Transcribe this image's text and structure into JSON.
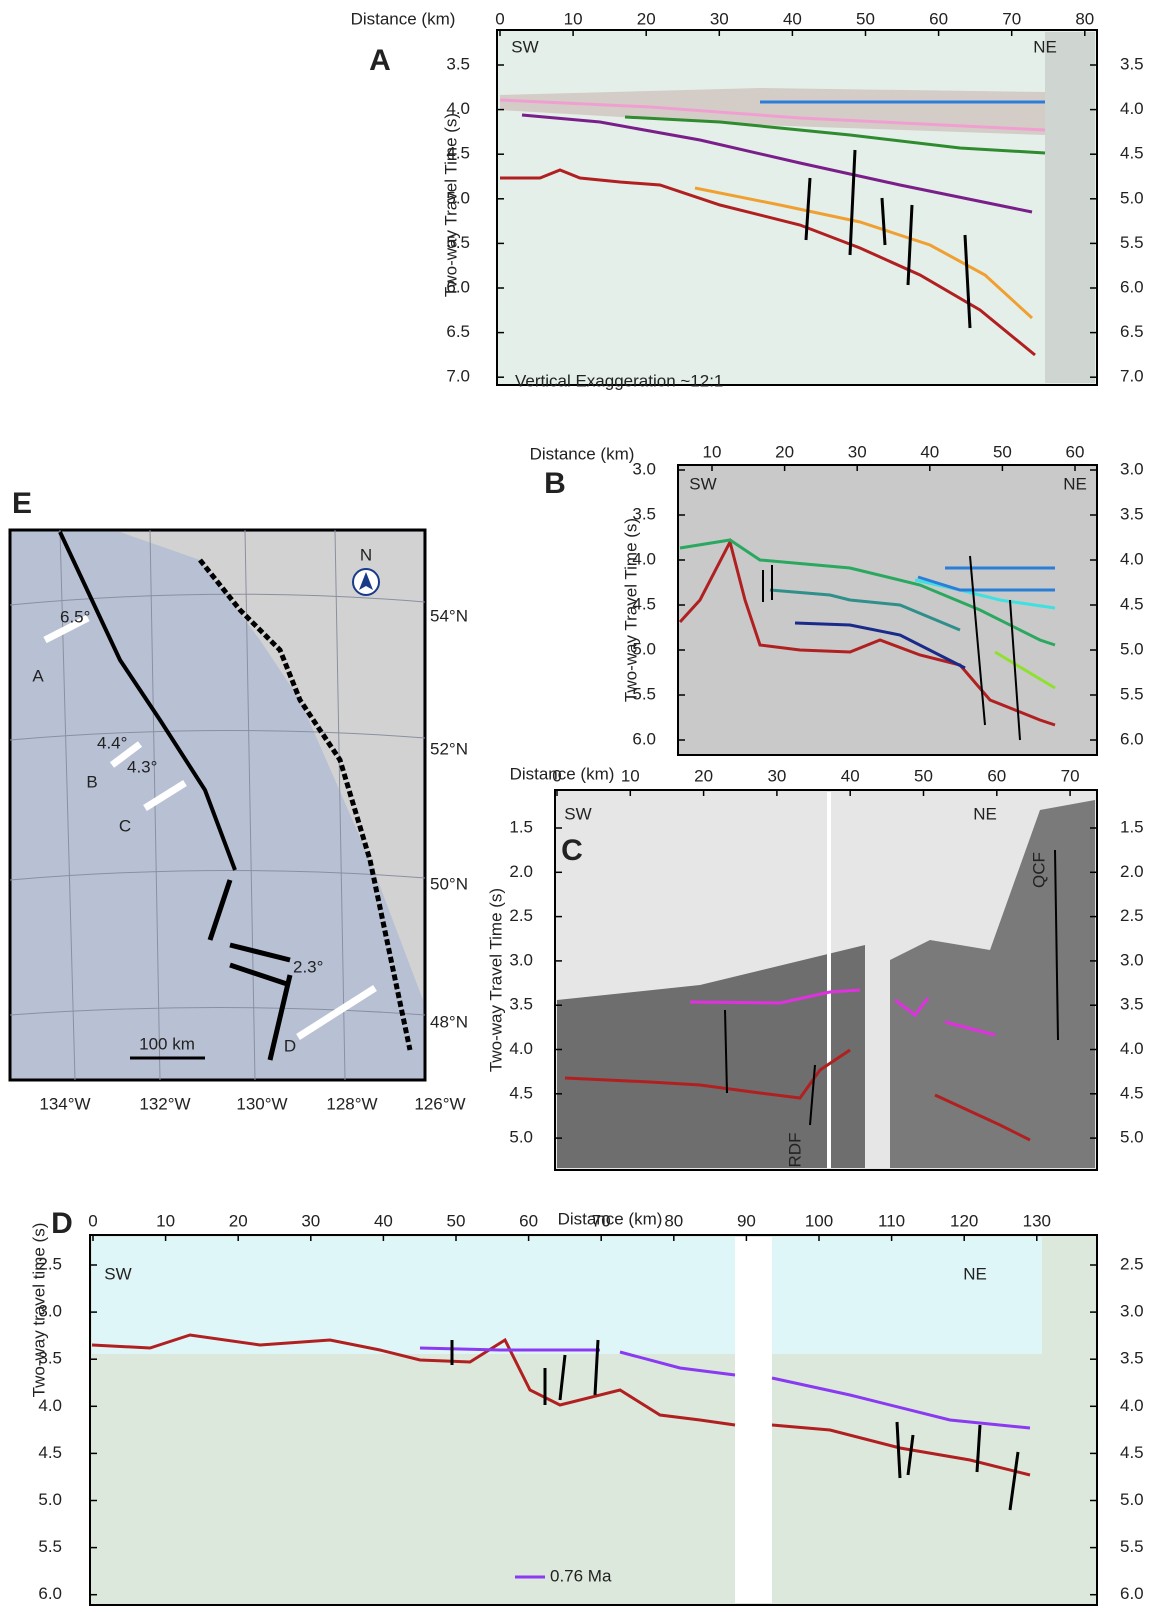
{
  "panels": [
    {
      "label": "A",
      "x_axis_title": "Distance (km)",
      "y_axis_title": "Two-way Travel Time (s)",
      "x_ticks": [
        "0",
        "10",
        "20",
        "30",
        "40",
        "50",
        "60",
        "70",
        "80"
      ],
      "y_ticks": [
        "3.5",
        "4.0",
        "4.5",
        "5.0",
        "5.5",
        "6.0",
        "6.5",
        "7.0"
      ],
      "annotations": [
        "SW",
        "NE",
        "Vertical Exaggeration ~12:1"
      ]
    },
    {
      "label": "B",
      "x_axis_title": "Distance (km)",
      "y_axis_title": "Two-way Travel Time (s)",
      "x_ticks": [
        "10",
        "20",
        "30",
        "40",
        "50",
        "60"
      ],
      "y_ticks": [
        "3.0",
        "3.5",
        "4.0",
        "4.5",
        "5.0",
        "5.5",
        "6.0"
      ],
      "annotations": [
        "SW",
        "NE"
      ]
    },
    {
      "label": "C",
      "x_axis_title": "Distance (km)",
      "y_axis_title": "Two-way Travel Time (s)",
      "x_ticks": [
        "0",
        "10",
        "20",
        "30",
        "40",
        "50",
        "60",
        "70"
      ],
      "y_ticks": [
        "1.5",
        "2.0",
        "2.5",
        "3.0",
        "3.5",
        "4.0",
        "4.5",
        "5.0"
      ],
      "annotations": [
        "SW",
        "NE",
        "QCF",
        "RDF"
      ]
    },
    {
      "label": "D",
      "x_axis_title": "Distance (km)",
      "y_axis_title": "Two-way travel time (s)",
      "x_ticks": [
        "0",
        "10",
        "20",
        "30",
        "40",
        "50",
        "60",
        "70",
        "80",
        "90",
        "100",
        "110",
        "120",
        "130"
      ],
      "y_ticks": [
        "2.5",
        "3.0",
        "3.5",
        "4.0",
        "4.5",
        "5.0",
        "5.5",
        "6.0"
      ],
      "annotations": [
        "SW",
        "NE"
      ],
      "legend": "0.76 Ma"
    }
  ],
  "map": {
    "label": "E",
    "latitude_labels": [
      "54°N",
      "52°N",
      "50°N",
      "48°N"
    ],
    "longitude_labels": [
      "134°W",
      "132°W",
      "130°W",
      "128°W",
      "126°W"
    ],
    "profiles": [
      {
        "name": "A",
        "dip": "6.5°"
      },
      {
        "name": "B",
        "dip": "4.4°"
      },
      {
        "name": "C",
        "dip": "4.3°"
      },
      {
        "name": "D",
        "dip": "2.3°"
      }
    ],
    "scale_bar": "100 km",
    "north": "N"
  }
}
